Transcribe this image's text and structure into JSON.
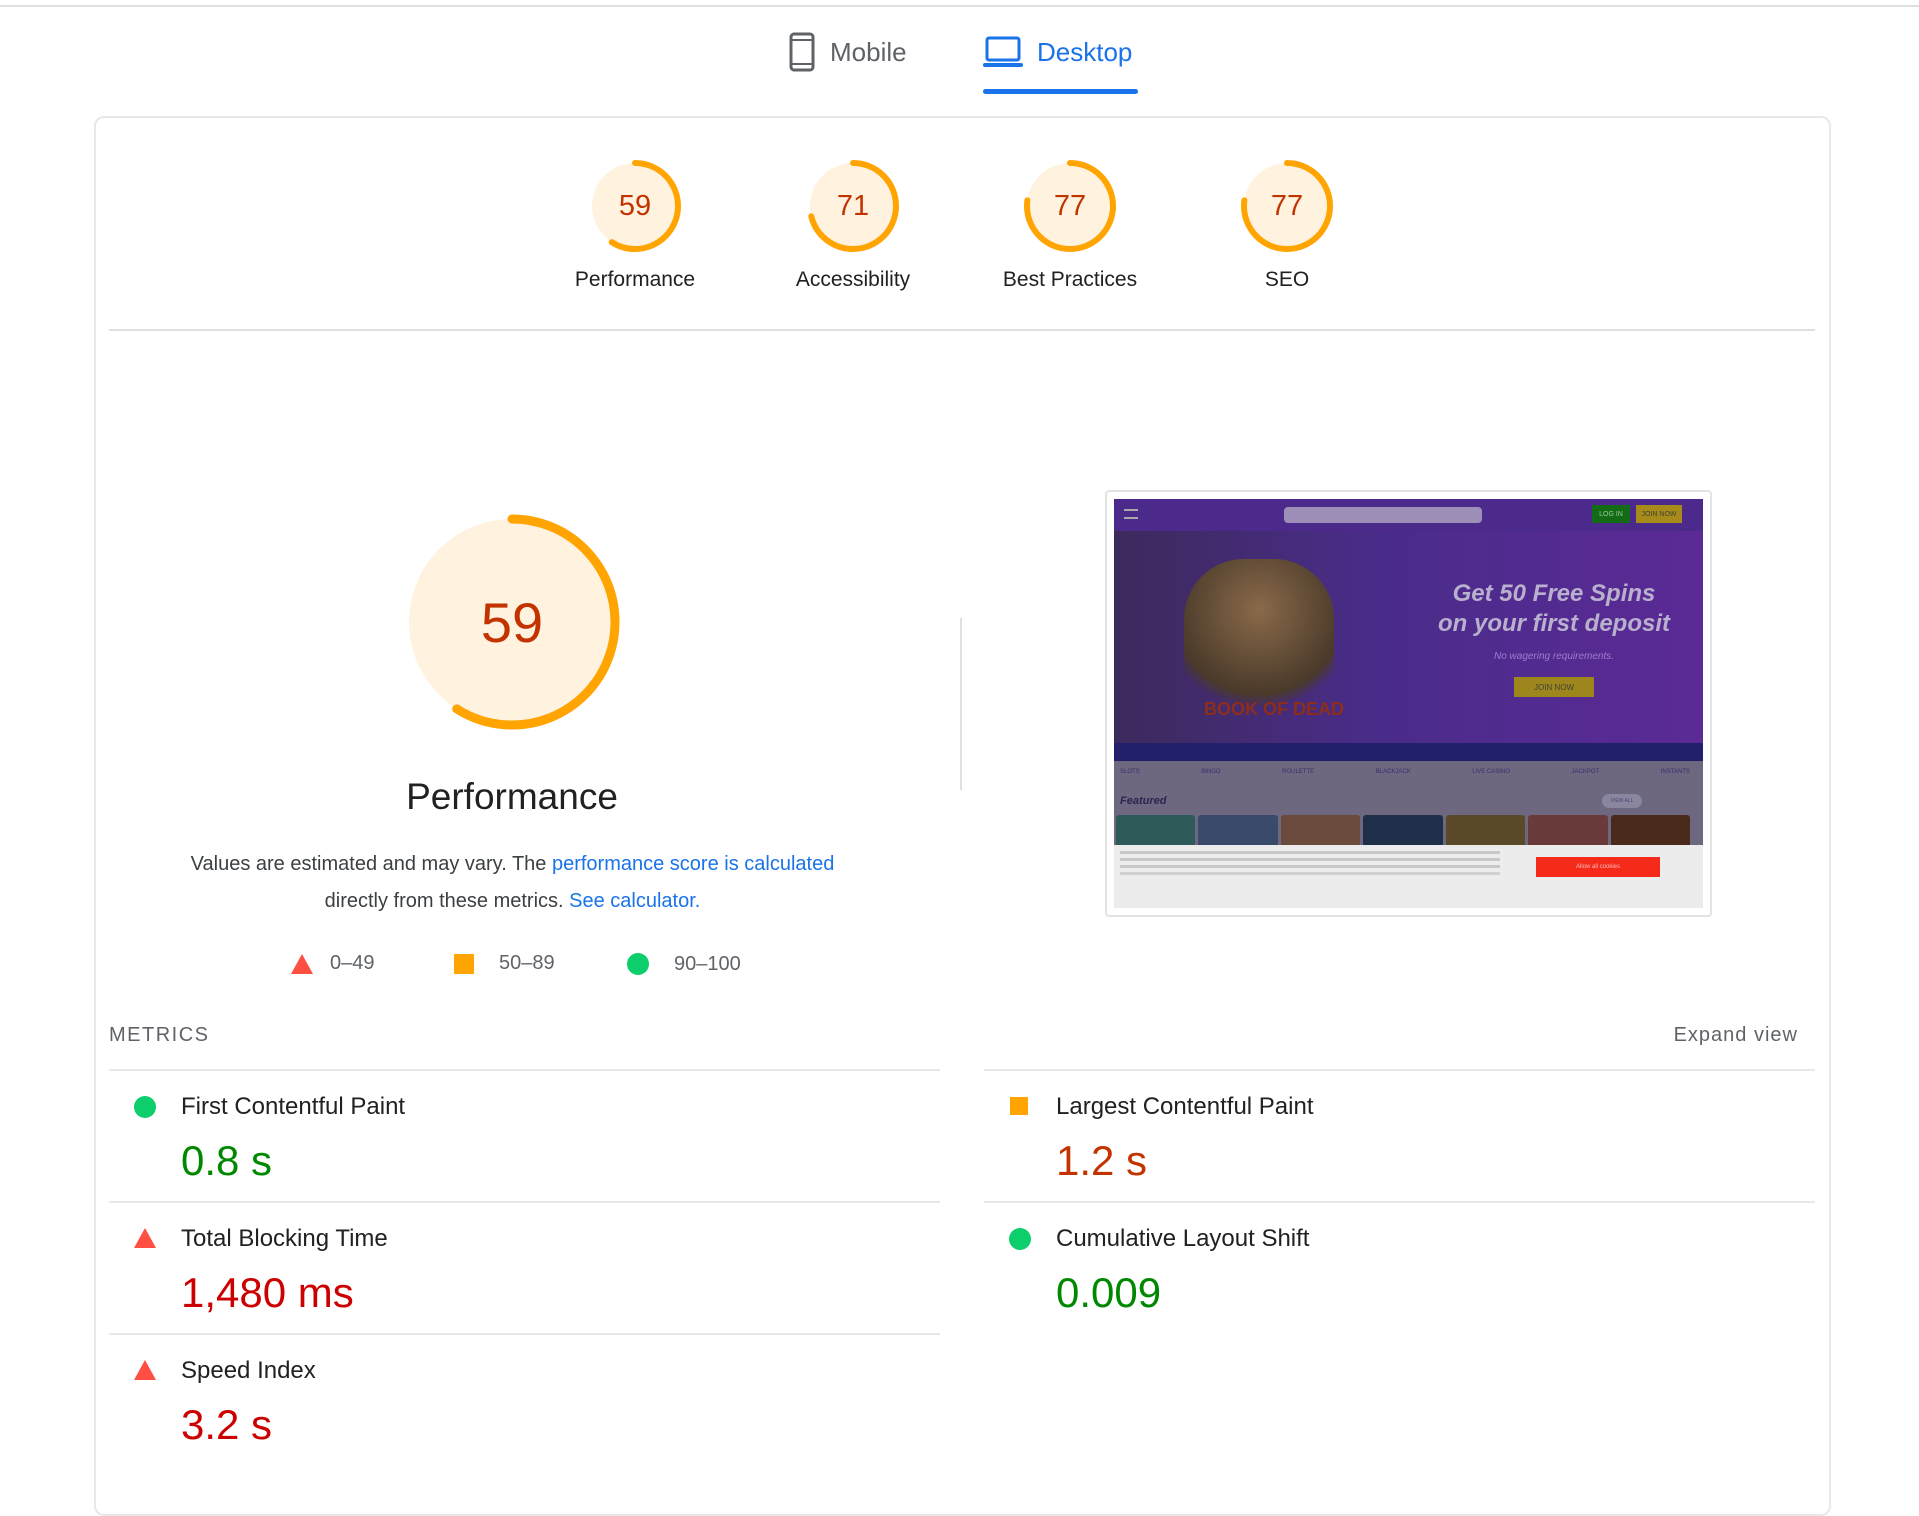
{
  "tabs": [
    {
      "label": "Mobile",
      "icon": "mobile-phone-icon",
      "active": false
    },
    {
      "label": "Desktop",
      "icon": "laptop-icon",
      "active": true
    }
  ],
  "categories": [
    {
      "label": "Performance",
      "score": 59
    },
    {
      "label": "Accessibility",
      "score": 71
    },
    {
      "label": "Best Practices",
      "score": 77
    },
    {
      "label": "SEO",
      "score": 77
    }
  ],
  "performance": {
    "score": 59,
    "title": "Performance",
    "desc_prefix": "Values are estimated and may vary. The ",
    "desc_link1": "performance score is calculated",
    "desc_mid": "directly from these metrics. ",
    "desc_link2": "See calculator."
  },
  "legend": [
    {
      "shape": "triangle",
      "range": "0–49",
      "color": "#ff4e42"
    },
    {
      "shape": "square",
      "range": "50–89",
      "color": "#ffa400"
    },
    {
      "shape": "circle",
      "range": "90–100",
      "color": "#0cce6b"
    }
  ],
  "metrics_header": "METRICS",
  "expand_view": "Expand view",
  "metrics": [
    {
      "name": "First Contentful Paint",
      "value": "0.8 s",
      "rating": "good"
    },
    {
      "name": "Largest Contentful Paint",
      "value": "1.2 s",
      "rating": "average"
    },
    {
      "name": "Total Blocking Time",
      "value": "1,480 ms",
      "rating": "poor"
    },
    {
      "name": "Cumulative Layout Shift",
      "value": "0.009",
      "rating": "good"
    },
    {
      "name": "Speed Index",
      "value": "3.2 s",
      "rating": "poor"
    }
  ],
  "screenshot": {
    "headline1": "Get 50 Free Spins",
    "headline2": "on your first deposit",
    "sub": "No wagering requirements.",
    "cta": "JOIN NOW",
    "login": "LOG IN",
    "join": "JOIN NOW",
    "game_title": "BOOK OF DEAD",
    "nav": [
      "SLOTS",
      "BINGO",
      "ROULETTE",
      "BLACKJACK",
      "LIVE CASINO",
      "JACKPOT",
      "INSTANTS"
    ],
    "featured": "Featured",
    "view_all": "VIEW ALL",
    "cookie_btn": "Allow all cookies"
  },
  "colors": {
    "accent": "#1a73e8",
    "average": "#ffa400",
    "average_bg": "#fff3e0",
    "average_text": "#c33300",
    "good": "#0cce6b",
    "good_text": "#008800",
    "poor": "#ff4e42",
    "poor_text": "#cc0000"
  }
}
